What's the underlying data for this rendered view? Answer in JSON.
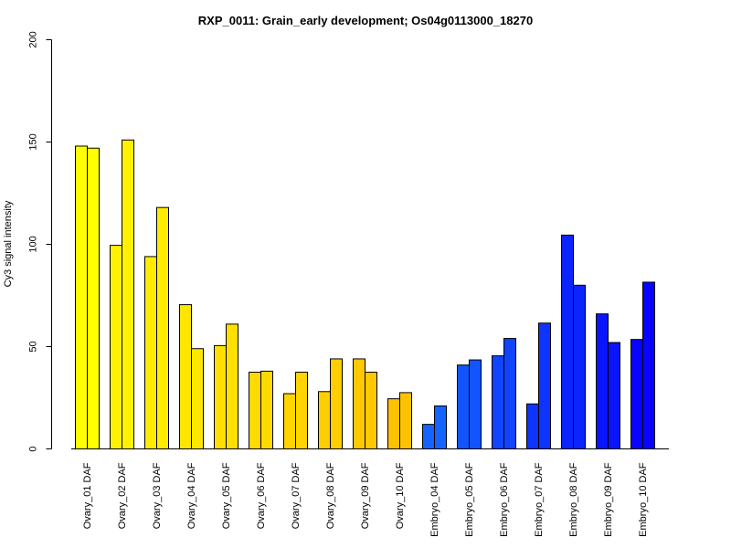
{
  "chart_data": {
    "type": "bar",
    "title": "RXP_0011: Grain_early development; Os04g0113000_18270",
    "xlabel": "",
    "ylabel": "Cy3 signal intensity",
    "ylim": [
      0,
      200
    ],
    "yticks": [
      0,
      50,
      100,
      150,
      200
    ],
    "grid": false,
    "categories": [
      "Ovary_01 DAF",
      "Ovary_02 DAF",
      "Ovary_03 DAF",
      "Ovary_04 DAF",
      "Ovary_05 DAF",
      "Ovary_06 DAF",
      "Ovary_07 DAF",
      "Ovary_08 DAF",
      "Ovary_09 DAF",
      "Ovary_10 DAF",
      "Embryo_04 DAF",
      "Embryo_05 DAF",
      "Embryo_06 DAF",
      "Embryo_07 DAF",
      "Embryo_08 DAF",
      "Embryo_09 DAF",
      "Embryo_10 DAF"
    ],
    "series": [
      {
        "values": [
          148,
          99.5,
          94,
          70.5,
          50.5,
          37.5,
          27,
          28,
          44,
          24.5,
          12,
          41,
          45.5,
          22,
          104.5,
          66,
          53.5
        ]
      },
      {
        "values": [
          147,
          151,
          118,
          49,
          61,
          38,
          37.5,
          44,
          37.5,
          27.5,
          21,
          43.5,
          54,
          61.5,
          80,
          52,
          81.5
        ]
      }
    ],
    "colors": [
      "#ffff00",
      "#fff200",
      "#ffec00",
      "#ffe600",
      "#ffe000",
      "#ffda00",
      "#ffd400",
      "#ffce00",
      "#ffc800",
      "#ffc200",
      "#1464ff",
      "#1254ff",
      "#1044ff",
      "#0e34ff",
      "#0c24ff",
      "#0a14ff",
      "#0804ff"
    ]
  }
}
